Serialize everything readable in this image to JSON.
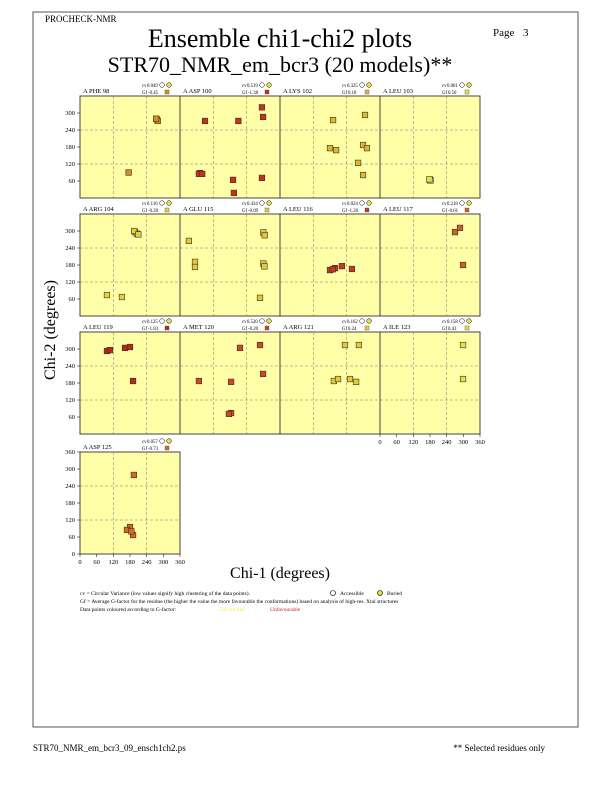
{
  "header": {
    "program": "PROCHECK-NMR",
    "page_label": "Page",
    "page_number": "3",
    "title": "Ensemble chi1-chi2 plots",
    "subtitle": "STR70_NMR_em_bcr3 (20 models)**"
  },
  "chart_data": {
    "type": "scatter",
    "x_label": "Chi-1 (degrees)",
    "y_label": "Chi-2 (degrees)",
    "xlim": [
      0,
      360
    ],
    "ylim": [
      0,
      360
    ],
    "xticks": [
      0,
      60,
      120,
      180,
      240,
      300,
      360
    ],
    "yticks": [
      60,
      120,
      180,
      240,
      300
    ],
    "yticks_last_row": [
      0,
      60,
      120,
      180,
      240,
      300,
      360
    ],
    "grid_lines": [
      120,
      240
    ],
    "cv_label": "cv",
    "gf_label": "Gf",
    "panels": [
      {
        "residue": "A PHE 98",
        "cv": "0.049",
        "gf": "-0.45",
        "color": "#d98a1c",
        "x": [
          277,
          280,
          274,
          175
        ],
        "y": [
          277,
          272,
          280,
          90
        ]
      },
      {
        "residue": "A ASP 100",
        "cv": "0.519",
        "gf": "-1.38",
        "color": "#c83018",
        "x": [
          72,
          68,
          80,
          90,
          210,
          191,
          194,
          295,
          295,
          299
        ],
        "y": [
          88,
          85,
          85,
          272,
          272,
          64,
          18,
          71,
          320,
          286
        ]
      },
      {
        "residue": "A LYS 102",
        "cv": "0.325",
        "gf": "0.18",
        "color": "#e0b830",
        "x": [
          191,
          180,
          202,
          306,
          299,
          313,
          281,
          299
        ],
        "y": [
          275,
          176,
          169,
          293,
          187,
          176,
          124,
          81
        ]
      },
      {
        "residue": "A LEU 103",
        "cv": "0.001",
        "gf": "0.50",
        "color": "#e8e040",
        "x": [
          180,
          182,
          178
        ],
        "y": [
          64,
          62,
          66
        ]
      },
      {
        "residue": "A ARG 104",
        "cv": "0.116",
        "gf": "-0.20",
        "color": "#e6d038",
        "x": [
          198,
          205,
          195,
          210,
          97,
          151
        ],
        "y": [
          296,
          290,
          300,
          288,
          74,
          67
        ]
      },
      {
        "residue": "A GLU 115",
        "cv": "0.434",
        "gf": "-0.09",
        "color": "#e4c838",
        "x": [
          32,
          54,
          54,
          288,
          300,
          305,
          300,
          304
        ],
        "y": [
          265,
          191,
          173,
          64,
          295,
          285,
          185,
          175
        ]
      },
      {
        "residue": "A LEU 116",
        "cv": "0.024",
        "gf": "-1.26",
        "color": "#c83a1a",
        "x": [
          180,
          198,
          223,
          259,
          190
        ],
        "y": [
          162,
          169,
          176,
          166,
          165
        ]
      },
      {
        "residue": "A LEU 117",
        "cv": "0.218",
        "gf": "-0.61",
        "color": "#d06020",
        "x": [
          270,
          288,
          299
        ],
        "y": [
          296,
          311,
          180
        ]
      },
      {
        "residue": "A LEU 119",
        "cv": "0.125",
        "gf": "-1.83",
        "color": "#b82814",
        "x": [
          97,
          108,
          162,
          180,
          191
        ],
        "y": [
          293,
          296,
          304,
          307,
          187
        ]
      },
      {
        "residue": "A MET 120",
        "cv": "0.520",
        "gf": "-0.20",
        "color": "#d04820",
        "x": [
          68,
          184,
          184,
          176,
          216,
          288,
          299
        ],
        "y": [
          187,
          184,
          74,
          71,
          304,
          314,
          212
        ]
      },
      {
        "residue": "A ARG 121",
        "cv": "0.162",
        "gf": "0.24",
        "color": "#e4cc38",
        "x": [
          194,
          209,
          252,
          274,
          234,
          284
        ],
        "y": [
          187,
          194,
          194,
          184,
          314,
          314
        ]
      },
      {
        "residue": "A ILE 123",
        "cv": "0.158",
        "gf": "0.43",
        "color": "#e8e040",
        "x": [
          299,
          299
        ],
        "y": [
          314,
          194
        ]
      },
      {
        "residue": "A ASP 125",
        "cv": "0.057",
        "gf": "-0.73",
        "color": "#d86a1c",
        "x": [
          194,
          180,
          169,
          191,
          185
        ],
        "y": [
          279,
          95,
          85,
          67,
          80
        ]
      }
    ]
  },
  "key": {
    "cv_text": "cv = Circular Variance (low values signify high clustering of the data points).",
    "accessible": "Accessible",
    "buried": "Buried",
    "gf_text": "Gf = Average G-factor for the residue (the higher the value the more favourable the conformations) based on analysis of high-res. Xtal structures",
    "colour_text": "Data points coloured according to G-factor:",
    "favourable": "Favourable",
    "unfavourable": "Unfavourable"
  },
  "footer": {
    "file": "STR70_NMR_em_bcr3_09_ensch1ch2.ps",
    "note": "** Selected residues only"
  }
}
